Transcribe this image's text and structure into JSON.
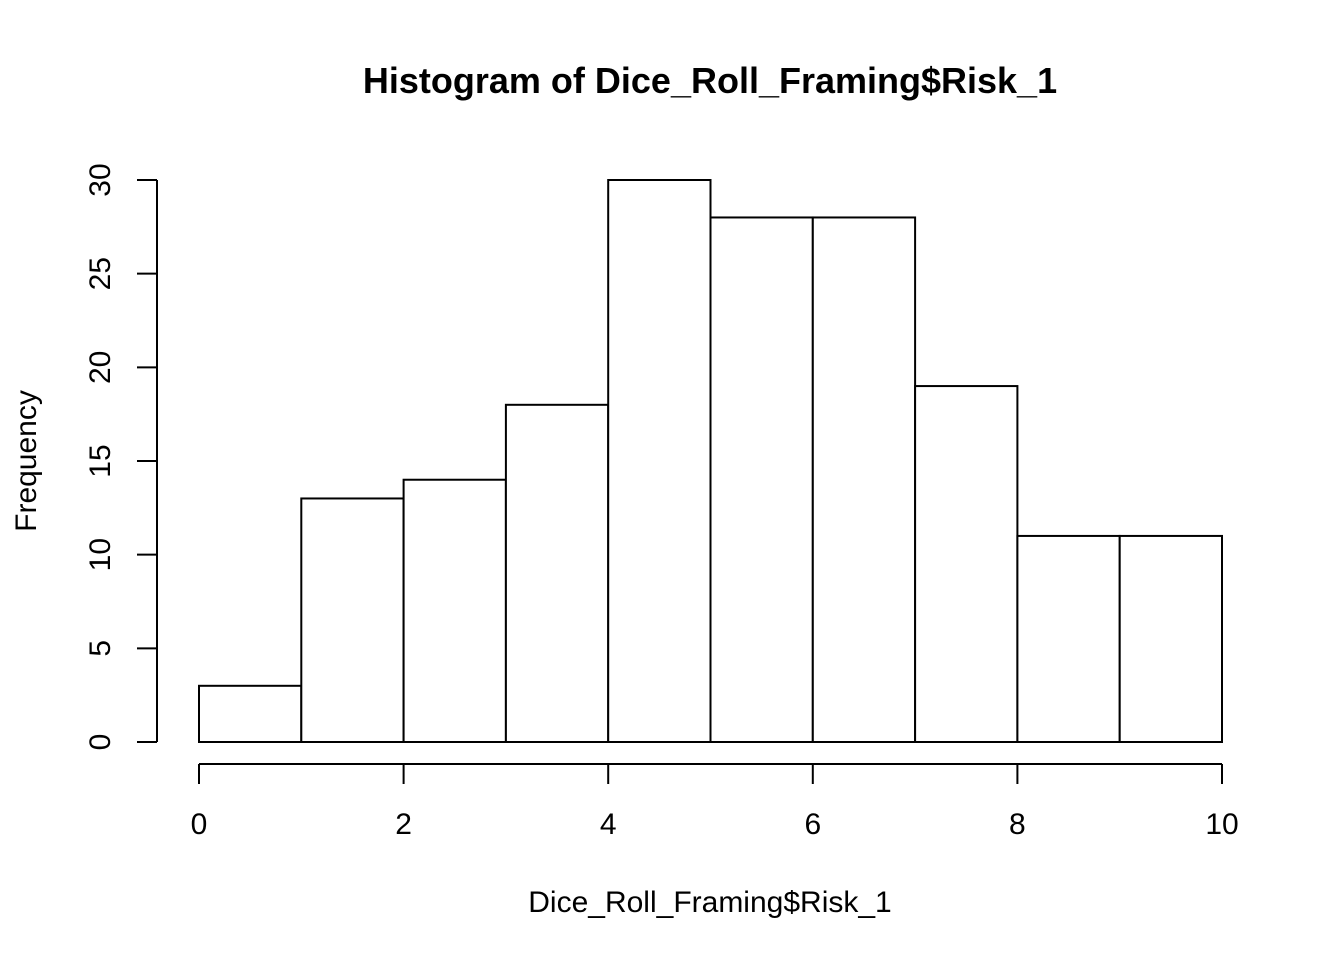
{
  "chart_data": {
    "type": "bar",
    "title": "Histogram of Dice_Roll_Framing$Risk_1",
    "xlabel": "Dice_Roll_Framing$Risk_1",
    "ylabel": "Frequency",
    "bins": [
      {
        "start": 0,
        "end": 1,
        "count": 3
      },
      {
        "start": 1,
        "end": 2,
        "count": 13
      },
      {
        "start": 2,
        "end": 3,
        "count": 14
      },
      {
        "start": 3,
        "end": 4,
        "count": 18
      },
      {
        "start": 4,
        "end": 5,
        "count": 30
      },
      {
        "start": 5,
        "end": 6,
        "count": 28
      },
      {
        "start": 6,
        "end": 7,
        "count": 28
      },
      {
        "start": 7,
        "end": 8,
        "count": 19
      },
      {
        "start": 8,
        "end": 9,
        "count": 11
      },
      {
        "start": 9,
        "end": 10,
        "count": 11
      }
    ],
    "xlim": [
      0,
      10
    ],
    "ylim": [
      0,
      30
    ],
    "x_ticks": [
      0,
      2,
      4,
      6,
      8,
      10
    ],
    "y_ticks": [
      0,
      5,
      10,
      15,
      20,
      25,
      30
    ],
    "grid": false,
    "bar_fill": "#ffffff",
    "bar_stroke": "#000000"
  }
}
